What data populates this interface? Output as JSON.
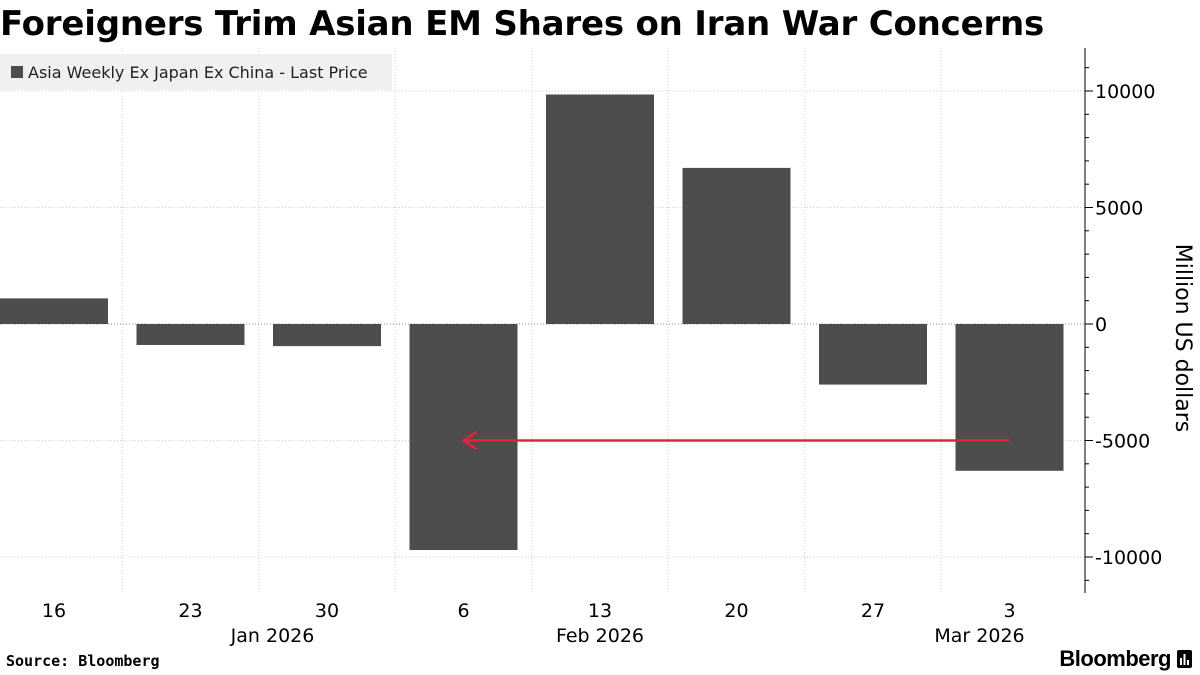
{
  "title": "Foreigners Trim Asian EM Shares on Iran War Concerns",
  "legend": {
    "label": "Asia Weekly Ex Japan Ex China - Last Price",
    "color": "#4d4d4d"
  },
  "source": "Source: Bloomberg",
  "brand": "Bloomberg",
  "chart_data": {
    "type": "bar",
    "title": "Foreigners Trim Asian EM Shares on Iran War Concerns",
    "series": [
      {
        "name": "Asia Weekly Ex Japan Ex China - Last Price",
        "values": [
          1100,
          -900,
          -950,
          -9700,
          9850,
          6700,
          -2600,
          -6300
        ],
        "color": "#4d4d4d"
      }
    ],
    "categories": [
      "16",
      "23",
      "30",
      "6",
      "13",
      "20",
      "27",
      "3"
    ],
    "period_labels": [
      {
        "label": "Jan 2026",
        "category_index": 1
      },
      {
        "label": "Feb 2026",
        "category_index": 4
      },
      {
        "label": "Mar 2026",
        "category_index": 7
      }
    ],
    "ylabel": "Million US dollars",
    "xlabel": "",
    "ylim": [
      -11500,
      11500
    ],
    "yticks": [
      10000,
      5000,
      0,
      -5000,
      -10000
    ],
    "grid": true,
    "annotations": [
      {
        "type": "arrow",
        "from": {
          "category_index": 7,
          "y": -5000
        },
        "to": {
          "category_index": 3,
          "y": -5000
        },
        "color": "#e8203a"
      }
    ]
  }
}
